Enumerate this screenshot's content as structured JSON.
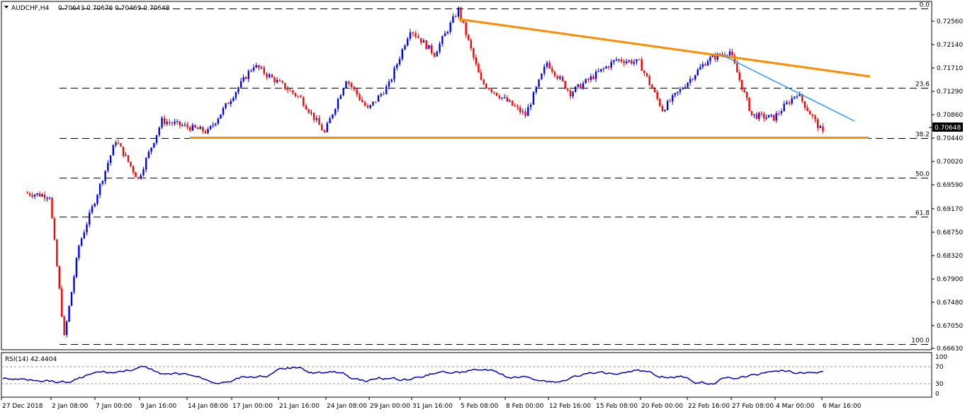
{
  "window": {
    "title": "AUDCHF,H4",
    "ohlc": "0.70643 0.70676 0.70469 0.70648"
  },
  "price_axis": {
    "ticks": [
      "0.72560",
      "0.72140",
      "0.71710",
      "0.71290",
      "0.70860",
      "0.70440",
      "0.70020",
      "0.69590",
      "0.69170",
      "0.68750",
      "0.68320",
      "0.67900",
      "0.67480",
      "0.67050",
      "0.66630"
    ],
    "current_price": "0.70648"
  },
  "fib_levels": [
    {
      "label": "0.0",
      "price": 0.7272
    },
    {
      "label": "23.6",
      "price": 0.7129
    },
    {
      "label": "38.2",
      "price": 0.7039
    },
    {
      "label": "50.0",
      "price": 0.6968
    },
    {
      "label": "61.8",
      "price": 0.6897
    },
    {
      "label": "100.0",
      "price": 0.6668
    }
  ],
  "rsi": {
    "label": "RSI(14) 42.4404",
    "ticks": [
      "100",
      "70",
      "30",
      "0"
    ]
  },
  "time_axis": {
    "labels": [
      "27 Dec 2018",
      "2 Jan 08:00",
      "7 Jan 00:00",
      "9 Jan 16:00",
      "14 Jan 08:00",
      "17 Jan 00:00",
      "21 Jan 16:00",
      "24 Jan 08:00",
      "29 Jan 00:00",
      "31 Jan 16:00",
      "5 Feb 08:00",
      "8 Feb 00:00",
      "12 Feb 16:00",
      "15 Feb 08:00",
      "20 Feb 00:00",
      "22 Feb 16:00",
      "27 Feb 08:00",
      "4 Mar 00:00",
      "6 Mar 16:00"
    ]
  },
  "colors": {
    "bull": "#0000ff",
    "bear": "#ff0000",
    "trendline": "#ff8c00",
    "support": "#ff8c00",
    "short_trendline": "#3399ee",
    "rsi_line": "#0000cc"
  },
  "chart_data": {
    "type": "candlestick",
    "symbol": "AUDCHF",
    "timeframe": "H4",
    "ylim": [
      0.6663,
      0.7277
    ],
    "last_price": 0.70648,
    "rsi_value": 42.4404,
    "swing_path": [
      {
        "x": "27 Dec 2018",
        "y": 0.694
      },
      {
        "x": "2 Jan 08:00",
        "y": 0.6935
      },
      {
        "x": "2 Jan 08:00",
        "y": 0.668
      },
      {
        "x": "2 Jan 08:00",
        "y": 0.6845
      },
      {
        "x": "7 Jan 00:00",
        "y": 0.7035
      },
      {
        "x": "9 Jan 16:00",
        "y": 0.6965
      },
      {
        "x": "9 Jan 16:00",
        "y": 0.707
      },
      {
        "x": "14 Jan 08:00",
        "y": 0.705
      },
      {
        "x": "17 Jan 00:00",
        "y": 0.717
      },
      {
        "x": "21 Jan 16:00",
        "y": 0.711
      },
      {
        "x": "24 Jan 08:00",
        "y": 0.7048
      },
      {
        "x": "24 Jan 08:00",
        "y": 0.7145
      },
      {
        "x": "29 Jan 00:00",
        "y": 0.709
      },
      {
        "x": "29 Jan 00:00",
        "y": 0.7135
      },
      {
        "x": "31 Jan 16:00",
        "y": 0.7235
      },
      {
        "x": "31 Jan 16:00",
        "y": 0.719
      },
      {
        "x": "5 Feb 08:00",
        "y": 0.727
      },
      {
        "x": "5 Feb 08:00",
        "y": 0.714
      },
      {
        "x": "8 Feb 00:00",
        "y": 0.708
      },
      {
        "x": "12 Feb 16:00",
        "y": 0.7175
      },
      {
        "x": "12 Feb 16:00",
        "y": 0.712
      },
      {
        "x": "15 Feb 08:00",
        "y": 0.718
      },
      {
        "x": "20 Feb 00:00",
        "y": 0.7175
      },
      {
        "x": "20 Feb 00:00",
        "y": 0.709
      },
      {
        "x": "22 Feb 16:00",
        "y": 0.718
      },
      {
        "x": "27 Feb 08:00",
        "y": 0.7195
      },
      {
        "x": "27 Feb 08:00",
        "y": 0.708
      },
      {
        "x": "4 Mar 00:00",
        "y": 0.7075
      },
      {
        "x": "4 Mar 00:00",
        "y": 0.712
      },
      {
        "x": "6 Mar 16:00",
        "y": 0.7047
      }
    ]
  }
}
